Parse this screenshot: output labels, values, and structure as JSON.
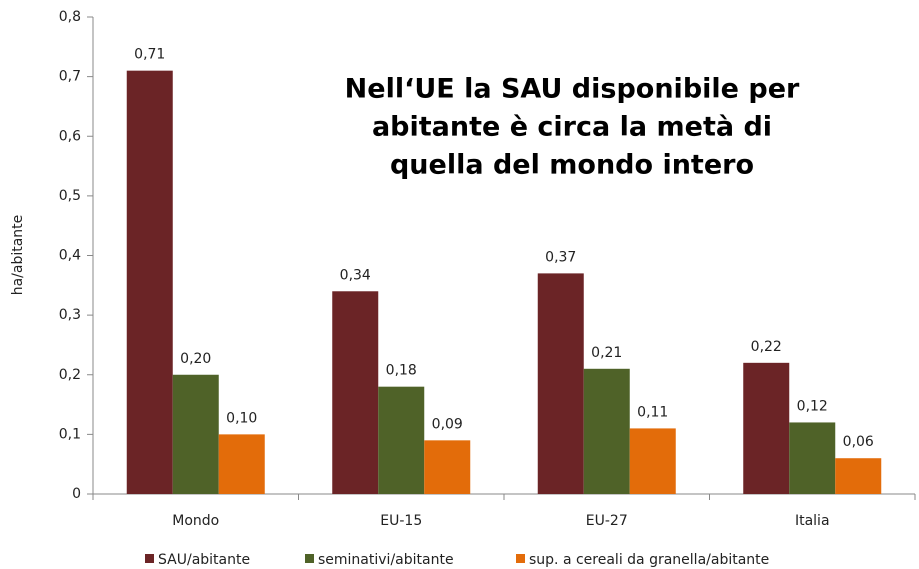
{
  "chart_data": {
    "type": "bar",
    "categories": [
      "Mondo",
      "EU-15",
      "EU-27",
      "Italia"
    ],
    "series": [
      {
        "name": "SAU/abitante",
        "color": "#6b2426",
        "values": [
          0.71,
          0.34,
          0.37,
          0.22
        ],
        "value_labels": [
          "0,71",
          "0,34",
          "0,37",
          "0,22"
        ]
      },
      {
        "name": "seminativi/abitante",
        "color": "#4f6228",
        "values": [
          0.2,
          0.18,
          0.21,
          0.12
        ],
        "value_labels": [
          "0,20",
          "0,18",
          "0,21",
          "0,12"
        ]
      },
      {
        "name": "sup. a cereali da granella/abitante",
        "color": "#e36c0a",
        "values": [
          0.1,
          0.09,
          0.11,
          0.06
        ],
        "value_labels": [
          "0,10",
          "0,09",
          "0,11",
          "0,06"
        ]
      }
    ],
    "ylabel": "ha/abitante",
    "ylim": [
      0,
      0.8
    ],
    "yticks": [
      0,
      {
        "value": 0.1,
        "label": "0,1"
      },
      {
        "value": 0.2,
        "label": "0,2"
      },
      {
        "value": 0.3,
        "label": "0,3"
      },
      {
        "value": 0.4,
        "label": "0,4"
      },
      {
        "value": 0.5,
        "label": "0,5"
      },
      {
        "value": 0.6,
        "label": "0,6"
      },
      {
        "value": 0.7,
        "label": "0,7"
      },
      {
        "value": 0.8,
        "label": "0,8"
      }
    ],
    "grid": false,
    "annotation": [
      "Nell‘UE la SAU disponibile per",
      "abitante è circa la metà di",
      "quella del mondo intero"
    ]
  }
}
